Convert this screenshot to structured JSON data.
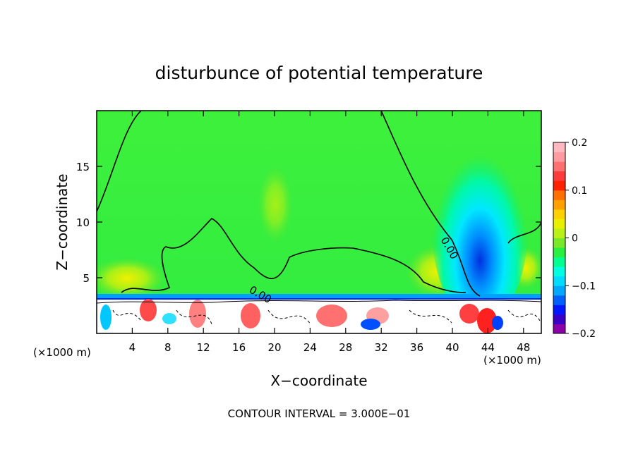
{
  "chart_data": {
    "type": "heatmap",
    "title": "disturbunce of potential temperature",
    "xlabel": "X−coordinate",
    "ylabel": "Z−coordinate",
    "x_unit": "(×1000 m)",
    "x_unit_right": "(×1000 m)",
    "xlim": [
      0,
      50
    ],
    "ylim": [
      0,
      20
    ],
    "x_ticks": [
      4,
      8,
      12,
      16,
      20,
      24,
      28,
      32,
      36,
      40,
      44,
      48
    ],
    "y_ticks": [
      5,
      10,
      15
    ],
    "colorbar": {
      "min": -0.2,
      "max": 0.2,
      "tick_values": [
        0.2,
        0.1,
        0,
        -0.1,
        -0.2
      ],
      "tick_labels": [
        "0.2",
        "0.1",
        "0",
        "−0.1",
        "−0.2"
      ],
      "colors": [
        "#8b00a8",
        "#3a00c8",
        "#0018ff",
        "#0060ff",
        "#00a8ff",
        "#00dcff",
        "#00ffe0",
        "#00ff90",
        "#28f040",
        "#78e828",
        "#b8f018",
        "#e8f000",
        "#ffd000",
        "#ffa000",
        "#ff7000",
        "#ff2000",
        "#ff3a3a",
        "#ff7070",
        "#ff9aa0",
        "#ffb8c0"
      ]
    },
    "contour_labels": [
      {
        "text": "0.00",
        "x": 17.2,
        "y": 4.5
      },
      {
        "text": "0.00",
        "x": 39.0,
        "y": 7.4
      }
    ],
    "contour_interval_label": "CONTOUR INTERVAL = 3.000E−01"
  }
}
